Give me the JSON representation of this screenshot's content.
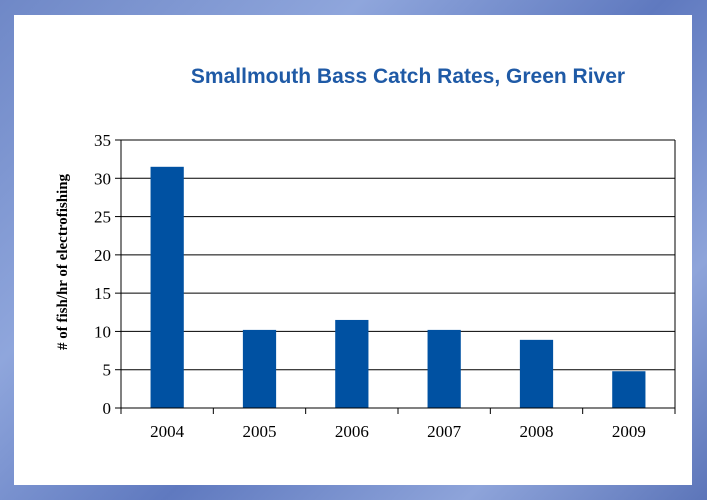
{
  "colors": {
    "bar": "#0051a2",
    "title": "#1f5aa6",
    "frame": "#6f88c7"
  },
  "chart_data": {
    "type": "bar",
    "title": "Smallmouth Bass Catch Rates, Green River",
    "xlabel": "",
    "ylabel": "# of fish/hr of electrofishing",
    "categories": [
      "2004",
      "2005",
      "2006",
      "2007",
      "2008",
      "2009"
    ],
    "values": [
      31.5,
      10.2,
      11.5,
      10.2,
      8.9,
      4.8
    ],
    "ylim": [
      0,
      35
    ],
    "yticks": [
      0,
      5,
      10,
      15,
      20,
      25,
      30,
      35
    ],
    "grid": "horizontal",
    "legend": "none"
  }
}
